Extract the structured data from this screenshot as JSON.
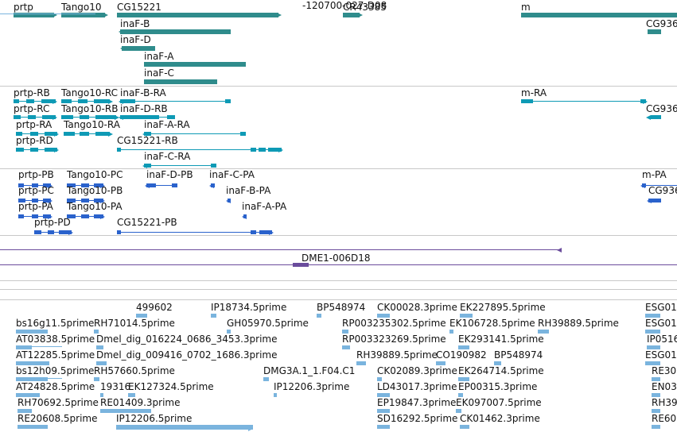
{
  "colors": {
    "gene": "#2f8c8c",
    "transcript": "#0e9ab5",
    "protein": "#2a62cc",
    "clone": "#6a4c9c",
    "est": "#7ab4de",
    "separator": "#c8c8c8"
  },
  "tracks": {
    "genes": {
      "labels": [
        "prtp",
        "Tango10",
        "CG15221",
        "CR43385",
        "m",
        "inaF-B",
        "CG936",
        "inaF-D",
        "inaF-A",
        "inaF-C"
      ]
    },
    "transcripts": {
      "labels": [
        "prtp-RB",
        "Tango10-RC",
        "inaF-B-RA",
        "m-RA",
        "prtp-RC",
        "Tango10-RB",
        "inaF-D-RB",
        "CG936",
        "prtp-RA",
        "Tango10-RA",
        "inaF-A-RA",
        "prtp-RD",
        "CG15221-RB",
        "inaF-C-RA"
      ]
    },
    "proteins": {
      "labels": [
        "prtp-PB",
        "Tango10-PC",
        "inaF-D-PB",
        "inaF-C-PA",
        "m-PA",
        "prtp-PC",
        "Tango10-PB",
        "inaF-B-PA",
        "CG936",
        "prtp-PA",
        "Tango10-PA",
        "inaF-A-PA",
        "prtp-PD",
        "CG15221-PB"
      ]
    },
    "clones": {
      "labels": [
        "DME1-006D18"
      ]
    },
    "ests": {
      "labels": [
        "-120700-027-D08",
        "499602",
        "IP18734.5prime",
        "BP548974",
        "CK00028.3prime",
        "EK227895.5prime",
        "ESG01",
        "bs16g11.5prime",
        "RH71014.5prime",
        "GH05970.5prime",
        "RP003235302.5prime",
        "EK106728.5prime",
        "RH39889.5prime",
        "ESG01",
        "AT03838.5prime",
        "Dmel_dig_016224_0686_3453.3prime",
        "RP003323269.5prime",
        "EK293141.5prime",
        "IP0516",
        "AT12285.5prime",
        "Dmel_dig_009416_0702_1686.3prime",
        "RH39889.5prime",
        "CO190982",
        "BP548974",
        "ESG01",
        "bs12h09.5prime",
        "RH57660.5prime",
        "DMG3A.1_1.F04.C1",
        "CK02089.3prime",
        "EK264714.5prime",
        "RE30",
        "AT24828.5prime",
        "19316",
        "EK127324.5prime",
        "IP12206.3prime",
        "LD43017.3prime",
        "EP00315.3prime",
        "EN03",
        "RH70692.5prime",
        "RE01409.3prime",
        "EP19847.3prime",
        "EK097007.5prime",
        "RH39",
        "RE20608.5prime",
        "IP12206.5prime",
        "SD16292.5prime",
        "CK01462.3prime",
        "RE60"
      ]
    }
  }
}
